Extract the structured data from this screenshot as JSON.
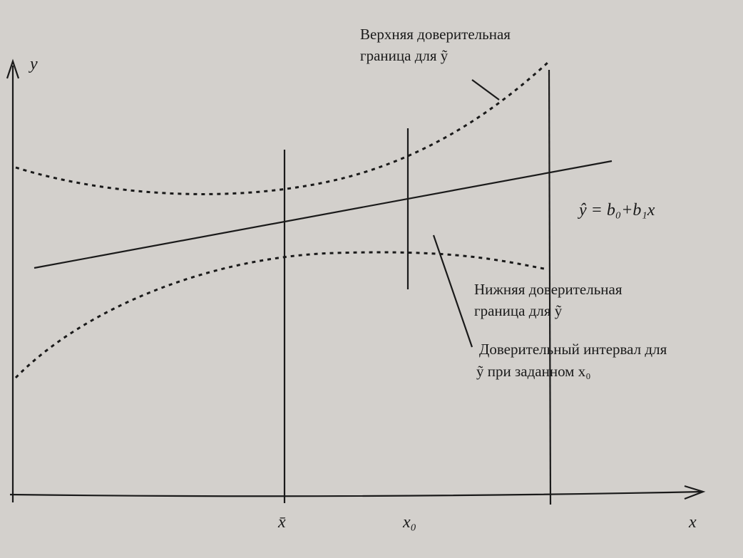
{
  "axes": {
    "y_label": "y",
    "x_label": "x",
    "x_mean_label": "x̄",
    "x0_label": "x₀"
  },
  "annotations": {
    "upper": [
      "Верхняя доверительная",
      "граница для ỹ"
    ],
    "regression": "ŷ = b₀+b₁x",
    "lower": [
      "Нижняя доверительная",
      "граница для ỹ"
    ],
    "interval": [
      "Доверительный интервал для",
      "ỹ при заданном x₀"
    ]
  }
}
